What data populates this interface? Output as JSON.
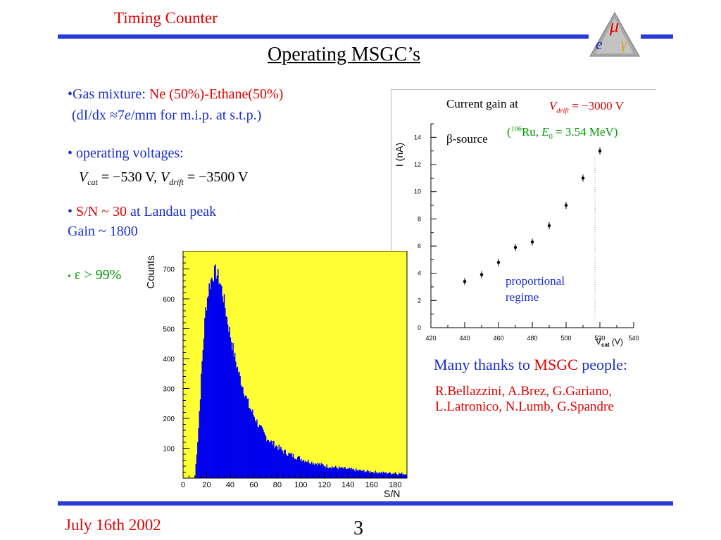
{
  "header": {
    "left_title": "Timing Counter",
    "logo_letters": [
      "μ",
      "e",
      "γ"
    ]
  },
  "slide": {
    "title": "Operating MSGC’s"
  },
  "bullets": {
    "gas_prefix": "•Gas mixture: ",
    "gas_value": "Ne (50%)-Ethane(50%)",
    "didx_open": "(dI/dx ≈7",
    "didx_e": "e",
    "didx_unit": "/mm",
    "didx_rest": " for m.i.p. at s.t.p.)",
    "voltages_label": "• operating voltages:",
    "vcat_V": "V",
    "vcat_sub": "cat",
    "vcat_eq": " = −530 V, ",
    "vdrift_V": "V",
    "vdrift_sub": "drift",
    "vdrift_eq": " = −3500 V",
    "sn_bullet": "• ",
    "sn_value": "S/N ~ 30",
    "sn_rest": " at Landau peak",
    "gain": "Gain ~ 1800",
    "eff_bullet": "•",
    "eff_value": " ε > 99%"
  },
  "gain_plot": {
    "label_current_gain": "Current gain at",
    "vdrift_V": "V",
    "vdrift_sub": "drift",
    "vdrift_eq": " = −3000 V",
    "beta_source": "β-source",
    "ru_open": "(",
    "ru_sup": "106",
    "ru_text": "Ru, ",
    "e0_E": "E",
    "e0_sub": "0",
    "e0_eq": " = 3.54 MeV)",
    "ylabel": "I (nA)",
    "xlabel_V": "V",
    "xlabel_sub": "cat",
    "xlabel_unit": "(V)",
    "annotation_line1": "proportional",
    "annotation_line2": "regime",
    "x_ticks": [
      "420",
      "440",
      "460",
      "480",
      "500",
      "520",
      "540"
    ],
    "y_ticks": [
      "0",
      "2",
      "4",
      "6",
      "8",
      "10",
      "12",
      "14"
    ]
  },
  "histogram": {
    "ylabel": "Counts",
    "xlabel": "S/N",
    "x_ticks": [
      "0",
      "20",
      "40",
      "60",
      "80",
      "100",
      "120",
      "140",
      "160",
      "180"
    ],
    "y_ticks": [
      "100",
      "200",
      "300",
      "400",
      "500",
      "600",
      "700"
    ],
    "fill_color": "#0000ee",
    "bg_color": "#ffff33"
  },
  "thanks": {
    "prefix": "Many thanks to ",
    "msgc": "MSGC",
    "suffix": " people:",
    "names_line1": "R.Bellazzini, A.Brez, G.Gariano,",
    "names_line2": "L.Latronico, N.Lumb, G.Spandre"
  },
  "footer": {
    "date": "July 16th 2002",
    "page_number": "3"
  },
  "chart_data": [
    {
      "type": "scatter",
      "title": "",
      "xlabel": "Vcat (V)",
      "ylabel": "I (nA)",
      "xlim": [
        420,
        540
      ],
      "ylim": [
        0,
        15
      ],
      "series": [
        {
          "x": [
            440,
            450,
            460,
            470,
            480,
            490,
            500,
            510,
            520
          ],
          "y": [
            3.4,
            3.9,
            4.8,
            5.9,
            6.3,
            7.5,
            9.0,
            11.0,
            13.0
          ]
        }
      ]
    },
    {
      "type": "bar",
      "title": "",
      "xlabel": "S/N",
      "ylabel": "Counts",
      "xlim": [
        0,
        190
      ],
      "ylim": [
        0,
        760
      ],
      "x": [
        0,
        5,
        10,
        13,
        16,
        19,
        22,
        25,
        28,
        31,
        34,
        37,
        40,
        44,
        48,
        52,
        56,
        60,
        65,
        70,
        75,
        80,
        85,
        90,
        100,
        110,
        120,
        130,
        140,
        150,
        160,
        170,
        180,
        190
      ],
      "values": [
        0,
        0,
        0,
        160,
        380,
        560,
        640,
        680,
        690,
        660,
        610,
        540,
        480,
        400,
        340,
        290,
        240,
        210,
        170,
        140,
        120,
        105,
        90,
        80,
        65,
        52,
        42,
        35,
        30,
        25,
        21,
        18,
        16,
        14
      ]
    }
  ]
}
